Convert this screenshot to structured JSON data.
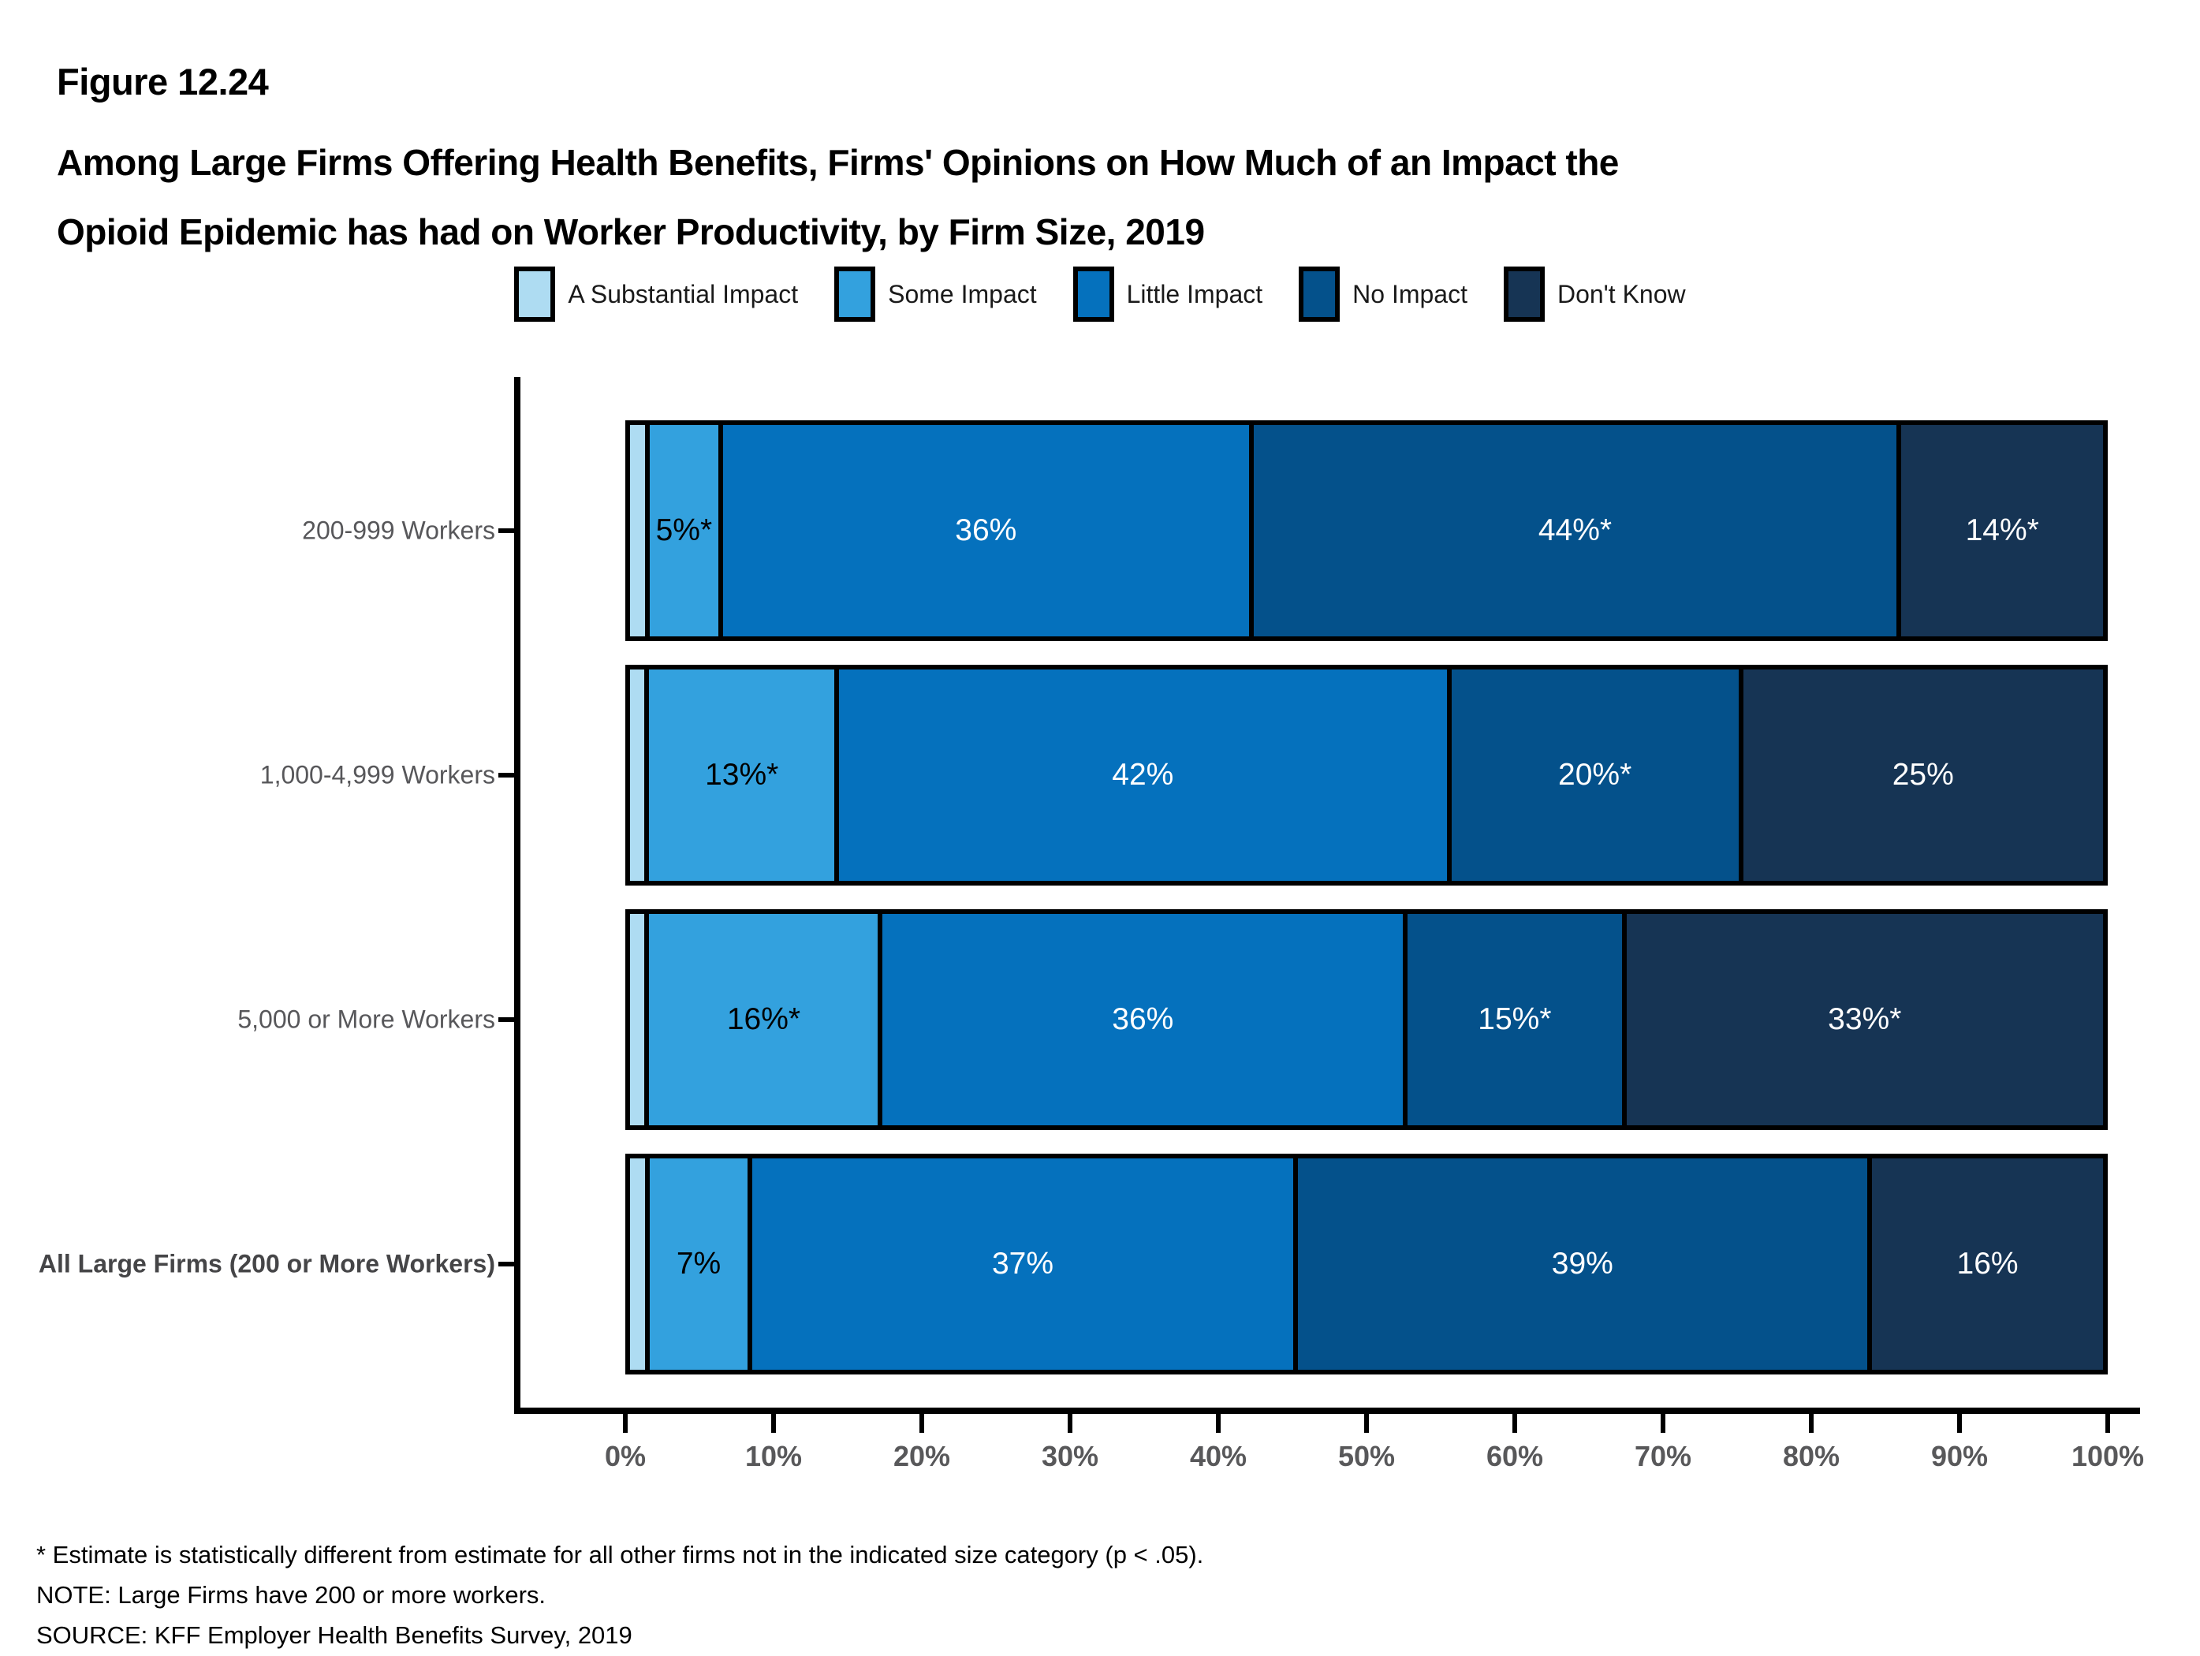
{
  "header": {
    "figure_label": "Figure 12.24",
    "title_line1": "Among Large Firms Offering Health Benefits, Firms' Opinions on How Much of an Impact the",
    "title_line2": "Opioid Epidemic has had on Worker Productivity, by Firm Size, 2019"
  },
  "chart_data": {
    "type": "bar",
    "orientation": "horizontal-stacked",
    "x_axis": {
      "ticks": [
        "0%",
        "10%",
        "20%",
        "30%",
        "40%",
        "50%",
        "60%",
        "70%",
        "80%",
        "90%",
        "100%"
      ],
      "range": [
        0,
        100
      ],
      "grid": false
    },
    "legend_position": "top",
    "categories": [
      {
        "label": "200-999 Workers",
        "bold": false
      },
      {
        "label": "1,000-4,999 Workers",
        "bold": false
      },
      {
        "label": "5,000 or More Workers",
        "bold": false
      },
      {
        "label": "All Large Firms (200 or More Workers)",
        "bold": true
      }
    ],
    "series": [
      {
        "name": "A Substantial Impact",
        "color": "#AEDCF2",
        "label_color": "#000000",
        "values": [
          1,
          1,
          1,
          1
        ],
        "estimated": true,
        "labels": [
          "",
          "",
          "",
          ""
        ]
      },
      {
        "name": "Some Impact",
        "color": "#33A1DE",
        "label_color": "#000000",
        "values": [
          5,
          13,
          16,
          7
        ],
        "labels": [
          "5%*",
          "13%*",
          "16%*",
          "7%"
        ]
      },
      {
        "name": "Little Impact",
        "color": "#0571BD",
        "label_color": "#FFFFFF",
        "values": [
          36,
          42,
          36,
          37
        ],
        "labels": [
          "36%",
          "42%",
          "36%",
          "37%"
        ]
      },
      {
        "name": "No Impact",
        "color": "#04518B",
        "label_color": "#FFFFFF",
        "values": [
          44,
          20,
          15,
          39
        ],
        "labels": [
          "44%*",
          "20%*",
          "15%*",
          "39%"
        ]
      },
      {
        "name": "Don't Know",
        "color": "#163454",
        "label_color": "#FFFFFF",
        "values": [
          14,
          25,
          33,
          16
        ],
        "labels": [
          "14%*",
          "25%",
          "33%*",
          "16%"
        ]
      }
    ]
  },
  "footnotes": [
    "* Estimate is statistically different from estimate for all other firms not in the indicated size category (p < .05).",
    "NOTE: Large Firms have 200 or more workers.",
    "SOURCE: KFF Employer Health Benefits Survey, 2019"
  ]
}
